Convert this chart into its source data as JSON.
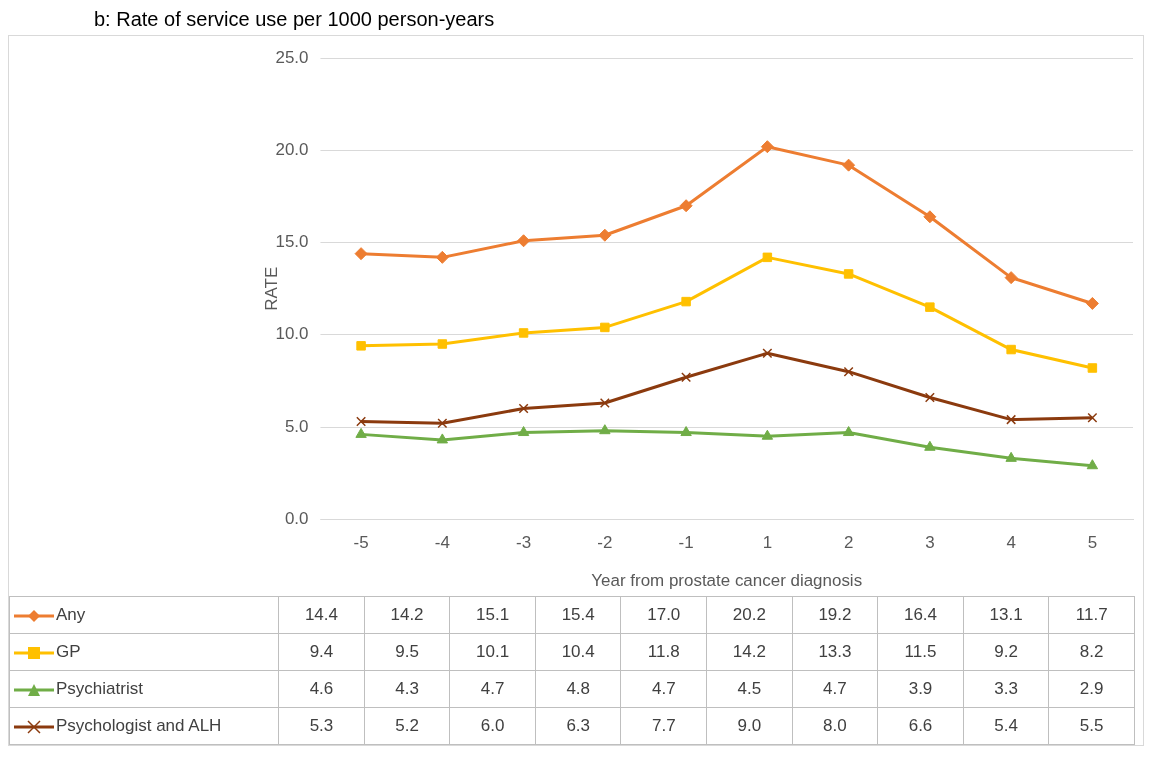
{
  "chart_data": {
    "type": "line",
    "title": "b: Rate of service use per 1000 person-years",
    "xlabel": "Year from prostate cancer diagnosis",
    "ylabel": "RATE",
    "categories": [
      "-5",
      "-4",
      "-3",
      "-2",
      "-1",
      "1",
      "2",
      "3",
      "4",
      "5"
    ],
    "ylim": [
      0,
      25
    ],
    "yticks": [
      {
        "value": 0,
        "label": "0.0"
      },
      {
        "value": 5,
        "label": "5.0"
      },
      {
        "value": 10,
        "label": "10.0"
      },
      {
        "value": 15,
        "label": "15.0"
      },
      {
        "value": 20,
        "label": "20.0"
      },
      {
        "value": 25,
        "label": "25.0"
      }
    ],
    "grid": "y",
    "legend": "bottom",
    "series": [
      {
        "name": "Any",
        "color": "#ed7d31",
        "marker": "diamond",
        "values": [
          14.4,
          14.2,
          15.1,
          15.4,
          17.0,
          20.2,
          19.2,
          16.4,
          13.1,
          11.7
        ],
        "value_labels": [
          "14.4",
          "14.2",
          "15.1",
          "15.4",
          "17.0",
          "20.2",
          "19.2",
          "16.4",
          "13.1",
          "11.7"
        ]
      },
      {
        "name": "GP",
        "color": "#ffc000",
        "marker": "square",
        "values": [
          9.4,
          9.5,
          10.1,
          10.4,
          11.8,
          14.2,
          13.3,
          11.5,
          9.2,
          8.2
        ],
        "value_labels": [
          "9.4",
          "9.5",
          "10.1",
          "10.4",
          "11.8",
          "14.2",
          "13.3",
          "11.5",
          "9.2",
          "8.2"
        ]
      },
      {
        "name": "Psychiatrist",
        "color": "#70ad47",
        "marker": "triangle",
        "values": [
          4.6,
          4.3,
          4.7,
          4.8,
          4.7,
          4.5,
          4.7,
          3.9,
          3.3,
          2.9
        ],
        "value_labels": [
          "4.6",
          "4.3",
          "4.7",
          "4.8",
          "4.7",
          "4.5",
          "4.7",
          "3.9",
          "3.3",
          "2.9"
        ]
      },
      {
        "name": "Psychologist and ALH",
        "color": "#8b3a0e",
        "marker": "cross",
        "values": [
          5.3,
          5.2,
          6.0,
          6.3,
          7.7,
          9.0,
          8.0,
          6.6,
          5.4,
          5.5
        ],
        "value_labels": [
          "5.3",
          "5.2",
          "6.0",
          "6.3",
          "7.7",
          "9.0",
          "8.0",
          "6.6",
          "5.4",
          "5.5"
        ]
      }
    ]
  }
}
